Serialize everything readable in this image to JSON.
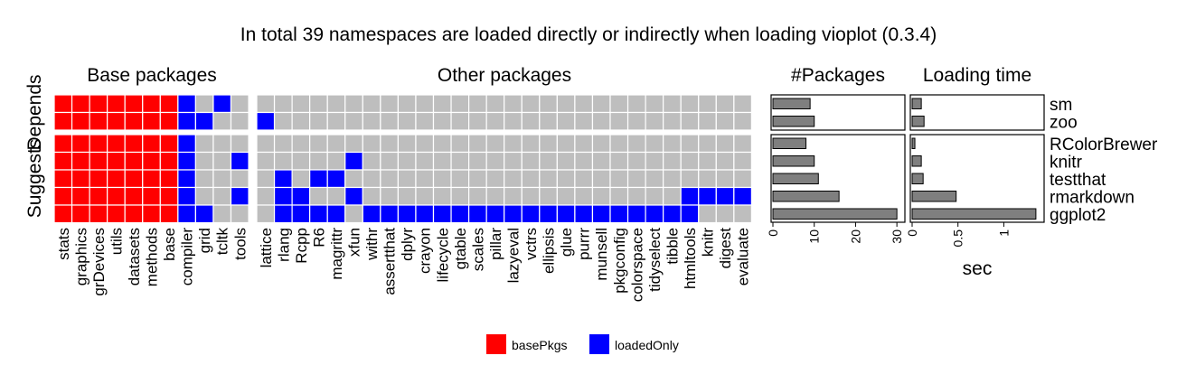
{
  "chart_data": {
    "type": "heatmap",
    "title": "In total 39 namespaces are loaded directly or indirectly when loading vioplot (0.3.4)",
    "colors": {
      "basePkgs": "#ff0000",
      "loadedOnly": "#0000ff",
      "empty": "#bebebe",
      "bar": "#7f7f7f"
    },
    "panel_titles": {
      "base": "Base packages",
      "other": "Other packages",
      "npkg": "#Packages",
      "time": "Loading time"
    },
    "groups": [
      "Depends",
      "Suggests"
    ],
    "rows": [
      {
        "name": "sm",
        "group": "Depends",
        "n_packages": 9,
        "load_time": 0.1
      },
      {
        "name": "zoo",
        "group": "Depends",
        "n_packages": 10,
        "load_time": 0.13
      },
      {
        "name": "RColorBrewer",
        "group": "Suggests",
        "n_packages": 8,
        "load_time": 0.03
      },
      {
        "name": "knitr",
        "group": "Suggests",
        "n_packages": 10,
        "load_time": 0.1
      },
      {
        "name": "testthat",
        "group": "Suggests",
        "n_packages": 11,
        "load_time": 0.12
      },
      {
        "name": "rmarkdown",
        "group": "Suggests",
        "n_packages": 16,
        "load_time": 0.48
      },
      {
        "name": "ggplot2",
        "group": "Suggests",
        "n_packages": 30,
        "load_time": 1.35
      }
    ],
    "base_packages": [
      "stats",
      "graphics",
      "grDevices",
      "utils",
      "datasets",
      "methods",
      "base",
      "compiler",
      "grid",
      "tcltk",
      "tools"
    ],
    "other_packages": [
      "lattice",
      "rlang",
      "Rcpp",
      "R6",
      "magrittr",
      "xfun",
      "withr",
      "assertthat",
      "dplyr",
      "crayon",
      "lifecycle",
      "gtable",
      "scales",
      "pillar",
      "lazyeval",
      "vctrs",
      "ellipsis",
      "glue",
      "purrr",
      "munsell",
      "pkgconfig",
      "colorspace",
      "tidyselect",
      "tibble",
      "htmltools",
      "knitr",
      "digest",
      "evaluate"
    ],
    "cells_base": [
      "RRRRRRRB.B.",
      "RRRRRRRBB..",
      "RRRRRRRB...",
      "RRRRRRRB..B",
      "RRRRRRRB...",
      "RRRRRRRB..B",
      "RRRRRRRBB.."
    ],
    "cells_other": [
      "............................",
      "B...........................",
      "............................",
      ".....B......................",
      ".B.BB.......................",
      ".BB..B..................BBBB",
      ".BBBB.BBBBBBBBBBBBBBBBBBB..."
    ],
    "npkg_axis": {
      "ticks": [
        0,
        10,
        20,
        30
      ],
      "range": [
        0,
        31.5
      ]
    },
    "time_axis": {
      "ticks": [
        0,
        0.5,
        1
      ],
      "tick_labels": [
        "0",
        "0.5",
        "1"
      ],
      "range": [
        0,
        1.42
      ],
      "xlabel": "sec"
    },
    "legend": [
      {
        "key": "basePkgs",
        "label": "basePkgs"
      },
      {
        "key": "loadedOnly",
        "label": "loadedOnly"
      }
    ]
  }
}
